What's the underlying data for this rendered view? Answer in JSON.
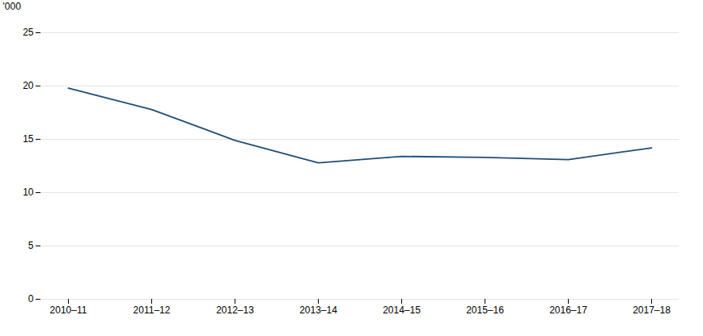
{
  "chart_data": {
    "type": "line",
    "categories": [
      "2010–11",
      "2011–12",
      "2012–13",
      "2013–14",
      "2014–15",
      "2015–16",
      "2016–17",
      "2017–18"
    ],
    "values": [
      19.8,
      17.8,
      14.9,
      12.8,
      13.4,
      13.3,
      13.1,
      14.2
    ],
    "color": "#1F4E79",
    "ylabel": "'000",
    "ylim": [
      0,
      25
    ],
    "yticks": [
      0,
      5,
      10,
      15,
      20,
      25
    ],
    "grid": true
  }
}
